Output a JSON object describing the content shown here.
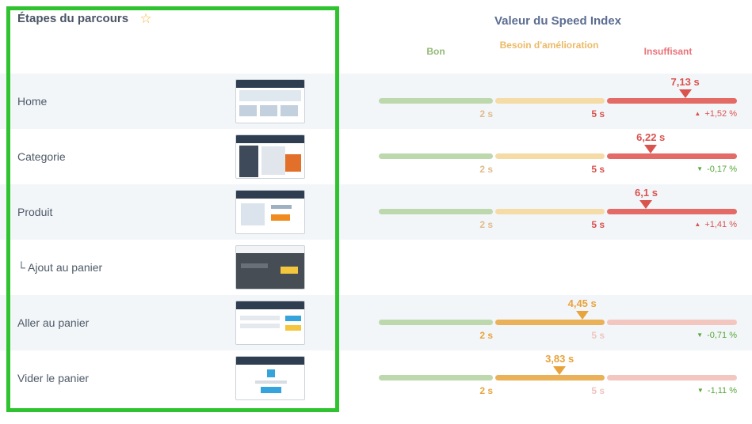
{
  "header": {
    "left_title": "Étapes du parcours",
    "right_title": "Valeur du Speed Index",
    "zones": [
      {
        "id": "good",
        "label": "Bon"
      },
      {
        "id": "warn",
        "label": "Besoin d'amélioration"
      },
      {
        "id": "bad",
        "label": "Insuffisant"
      }
    ]
  },
  "gauge": {
    "tick_labels": [
      "2 s",
      "5 s"
    ],
    "scale": {
      "good_max_s": 2,
      "warn_max_s": 5,
      "bad_max_s": 8.5
    }
  },
  "colors": {
    "good_zone": "#94ba78",
    "warn_zone": "#ecba67",
    "bad_zone": "#e8737a",
    "bad_value": "#d9534f",
    "warn_value": "#e8a33d",
    "change_up": "#d9534f",
    "change_down": "#57a639",
    "highlight_box": "#2fc32f"
  },
  "rows": [
    {
      "label": "Home",
      "thumbnail": "homepage",
      "value_label": "7,13 s",
      "value_s": 7.13,
      "zone": "bad",
      "change_label": "+1,52 %",
      "change_direction": "up",
      "change_sentiment": "bad"
    },
    {
      "label": "Categorie",
      "thumbnail": "category-page",
      "value_label": "6,22 s",
      "value_s": 6.22,
      "zone": "bad",
      "change_label": "-0,17 %",
      "change_direction": "down",
      "change_sentiment": "good"
    },
    {
      "label": "Produit",
      "thumbnail": "product-page",
      "value_label": "6,1 s",
      "value_s": 6.1,
      "zone": "bad",
      "change_label": "+1,41 %",
      "change_direction": "up",
      "change_sentiment": "bad"
    },
    {
      "label": "└ Ajout au panier",
      "thumbnail": "add-to-cart-modal",
      "value_label": null,
      "value_s": null,
      "zone": null,
      "change_label": null,
      "change_direction": null,
      "change_sentiment": null
    },
    {
      "label": "Aller au panier",
      "thumbnail": "cart-page",
      "value_label": "4,45 s",
      "value_s": 4.45,
      "zone": "warn",
      "change_label": "-0,71 %",
      "change_direction": "down",
      "change_sentiment": "good"
    },
    {
      "label": "Vider le panier",
      "thumbnail": "empty-cart-page",
      "value_label": "3,83 s",
      "value_s": 3.83,
      "zone": "warn",
      "change_label": "-1,11 %",
      "change_direction": "down",
      "change_sentiment": "good"
    }
  ]
}
